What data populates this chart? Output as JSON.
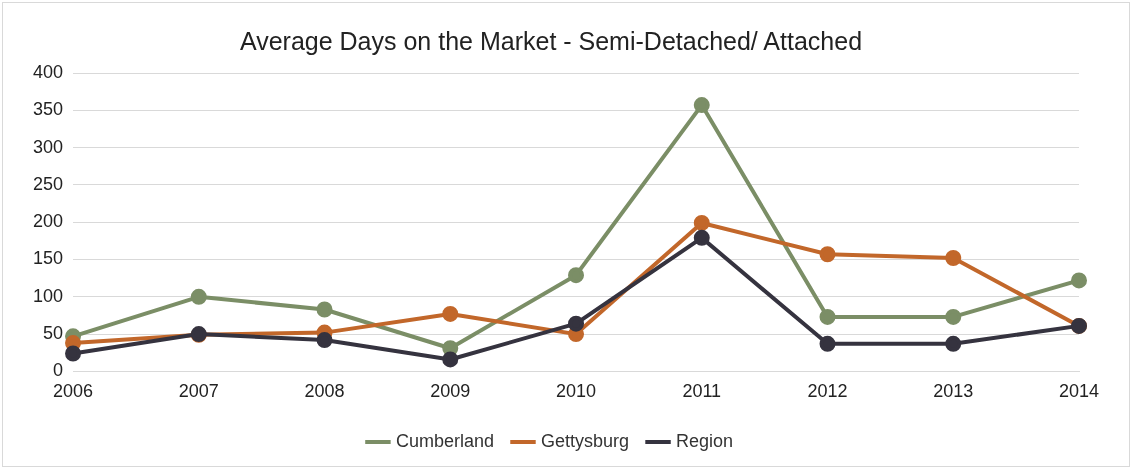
{
  "chart_data": {
    "type": "line",
    "title": "Average Days on the Market - Semi-Detached/ Attached",
    "categories": [
      "2006",
      "2007",
      "2008",
      "2009",
      "2010",
      "2011",
      "2012",
      "2013",
      "2014"
    ],
    "series": [
      {
        "name": "Cumberland",
        "color": "#7b8e66",
        "values": [
          47,
          100,
          83,
          31,
          129,
          357,
          73,
          73,
          122
        ]
      },
      {
        "name": "Gettysburg",
        "color": "#c2672a",
        "values": [
          38,
          49,
          52,
          77,
          50,
          199,
          157,
          152,
          61
        ]
      },
      {
        "name": "Region",
        "color": "#35333f",
        "values": [
          24,
          50,
          42,
          16,
          64,
          179,
          37,
          37,
          61
        ]
      }
    ],
    "ylim": [
      0,
      400
    ],
    "yticks": [
      0,
      50,
      100,
      150,
      200,
      250,
      300,
      350,
      400
    ],
    "grid": "y",
    "legend": "bottom",
    "marker": "circle",
    "line_style": "solid"
  }
}
